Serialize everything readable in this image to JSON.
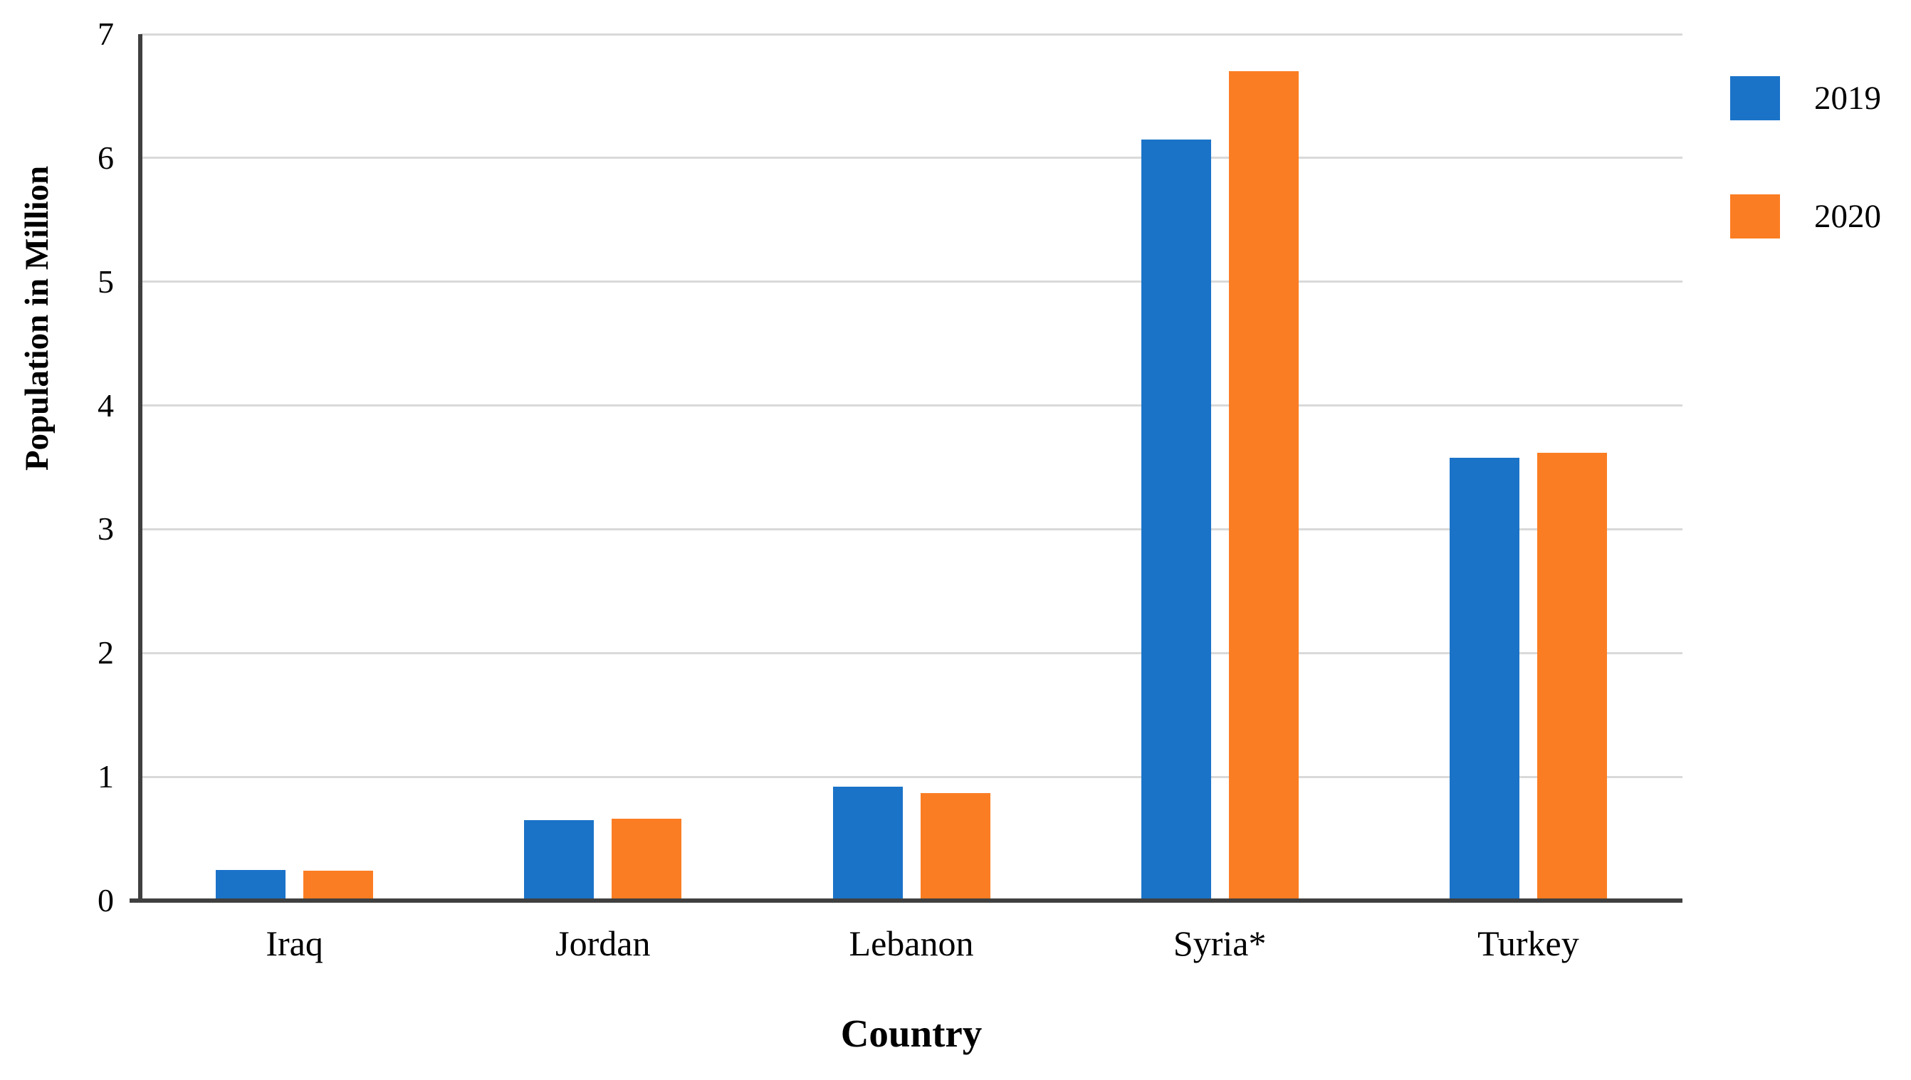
{
  "chart_data": {
    "type": "bar",
    "title": "",
    "categories": [
      "Iraq",
      "Jordan",
      "Lebanon",
      "Syria*",
      "Turkey"
    ],
    "series": [
      {
        "name": "2019",
        "color": "#1B73C8",
        "values": [
          0.25,
          0.65,
          0.92,
          6.15,
          3.58
        ]
      },
      {
        "name": "2020",
        "color": "#FB7D23",
        "values": [
          0.24,
          0.66,
          0.87,
          6.7,
          3.62
        ]
      }
    ],
    "xlabel": "Country",
    "ylabel": "Population in Million",
    "ylim": [
      0,
      7
    ],
    "yticks": [
      0,
      1,
      2,
      3,
      4,
      5,
      6,
      7
    ],
    "grid": true,
    "legend_position": "top-right"
  },
  "colors": {
    "bar_2019": "#1B73C8",
    "bar_2020": "#FB7D23",
    "axis": "#404040",
    "gridline": "#D9D9D9",
    "text": "#000000",
    "background": "#FFFFFF"
  }
}
